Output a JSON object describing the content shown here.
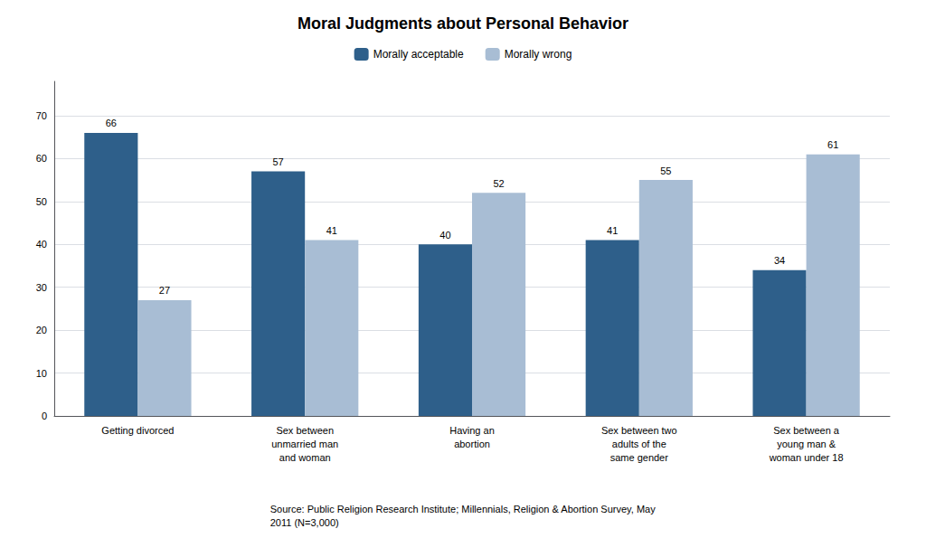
{
  "chart_data": {
    "type": "bar",
    "title": "Moral Judgments about Personal Behavior",
    "categories": [
      "Getting divorced",
      "Sex between\nunmarried man\nand woman",
      "Having an\nabortion",
      "Sex between two\nadults of the\nsame gender",
      "Sex between a\nyoung man &\nwoman under 18"
    ],
    "series": [
      {
        "name": "Morally acceptable",
        "color": "#2E5F8A",
        "values": [
          66,
          57,
          40,
          41,
          34
        ]
      },
      {
        "name": "Morally wrong",
        "color": "#A8BDD4",
        "values": [
          27,
          41,
          52,
          55,
          61
        ]
      }
    ],
    "ylim": [
      0,
      78
    ],
    "yticks": [
      0,
      10,
      20,
      30,
      40,
      50,
      60,
      70
    ],
    "grid": true,
    "legend": "top",
    "data_labels": true,
    "annotations": [
      "Source: Public Religion Research Institute; Millennials, Religion & Abortion Survey, May\n2011 (N=3,000)"
    ]
  }
}
